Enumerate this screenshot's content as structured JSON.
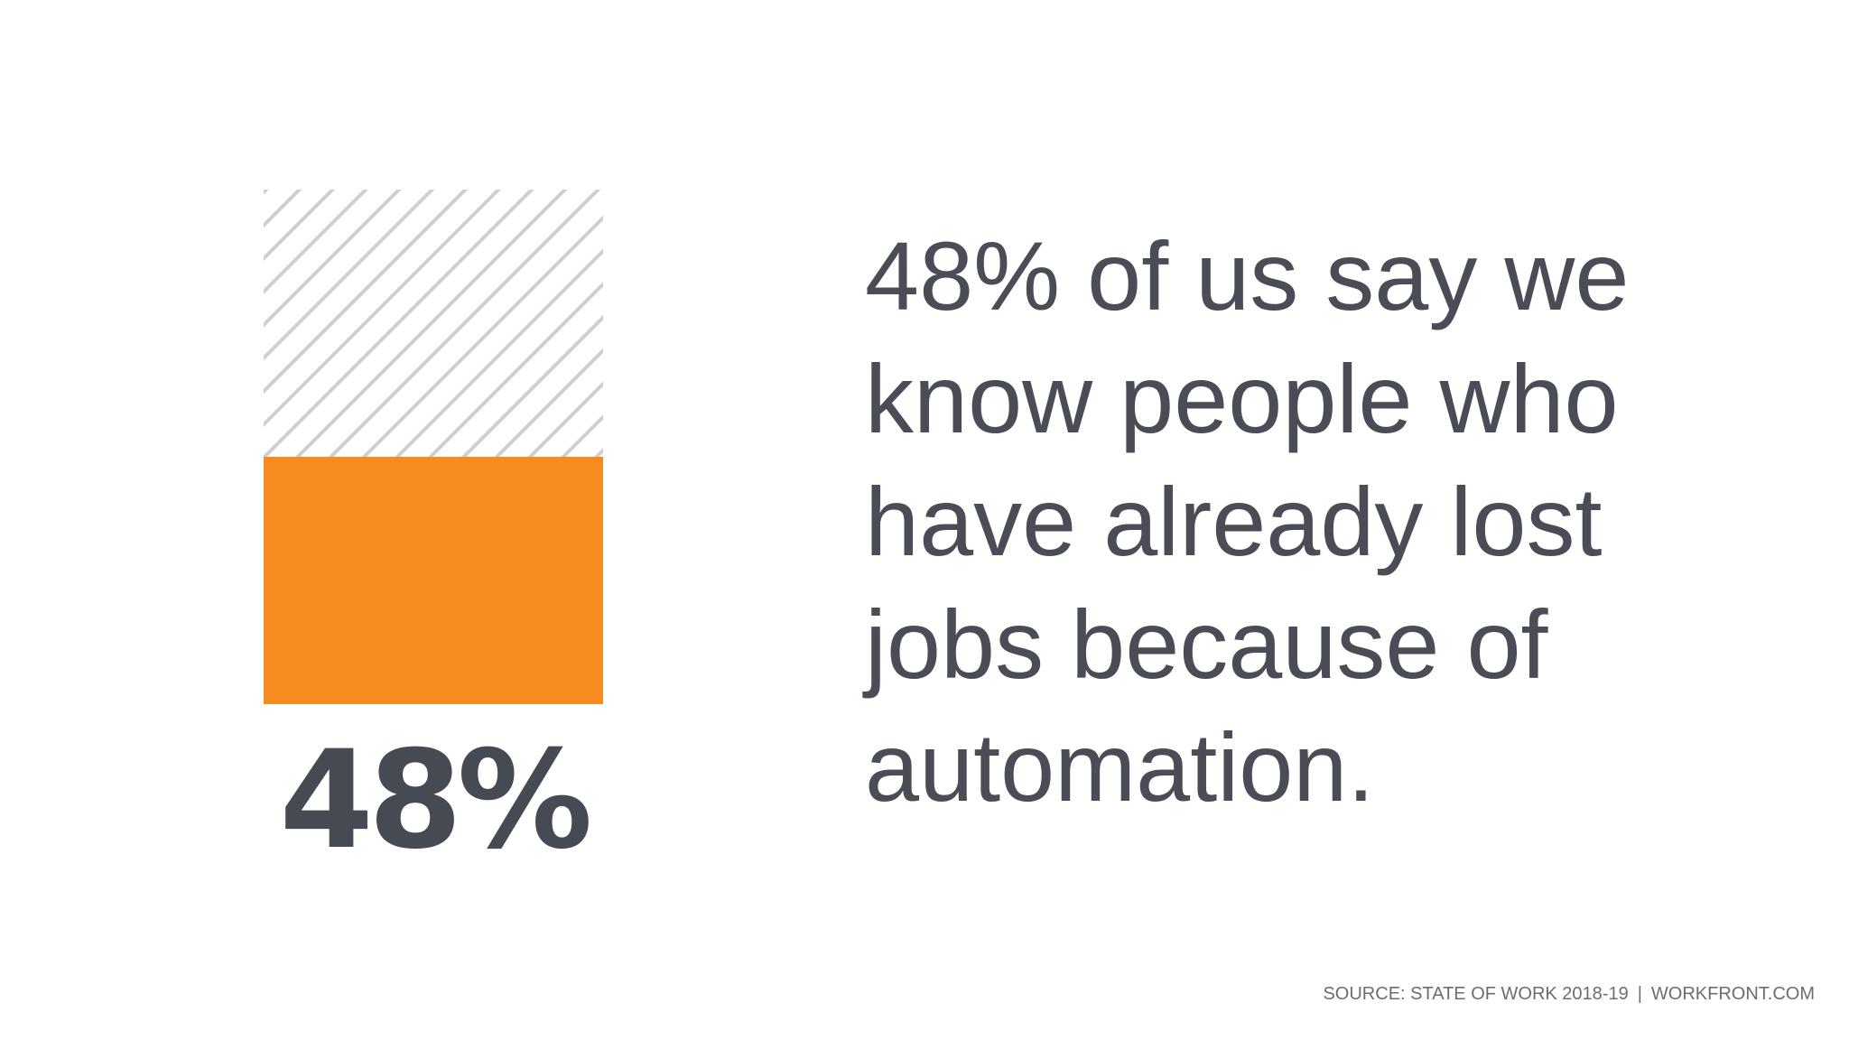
{
  "chart_data": {
    "type": "bar",
    "categories": [
      "48%"
    ],
    "values": [
      48
    ],
    "ylim": [
      0,
      100
    ],
    "data_label": "48%",
    "fill_color": "#f68b1f",
    "remainder_pattern_color": "#cfcfcf",
    "title": "",
    "xlabel": "",
    "ylabel": ""
  },
  "headline": "48% of us say we know people who have already lost jobs because of automation.",
  "source": {
    "label": "SOURCE: STATE OF WORK 2018-19",
    "separator": "|",
    "site": "WORKFRONT.COM"
  }
}
